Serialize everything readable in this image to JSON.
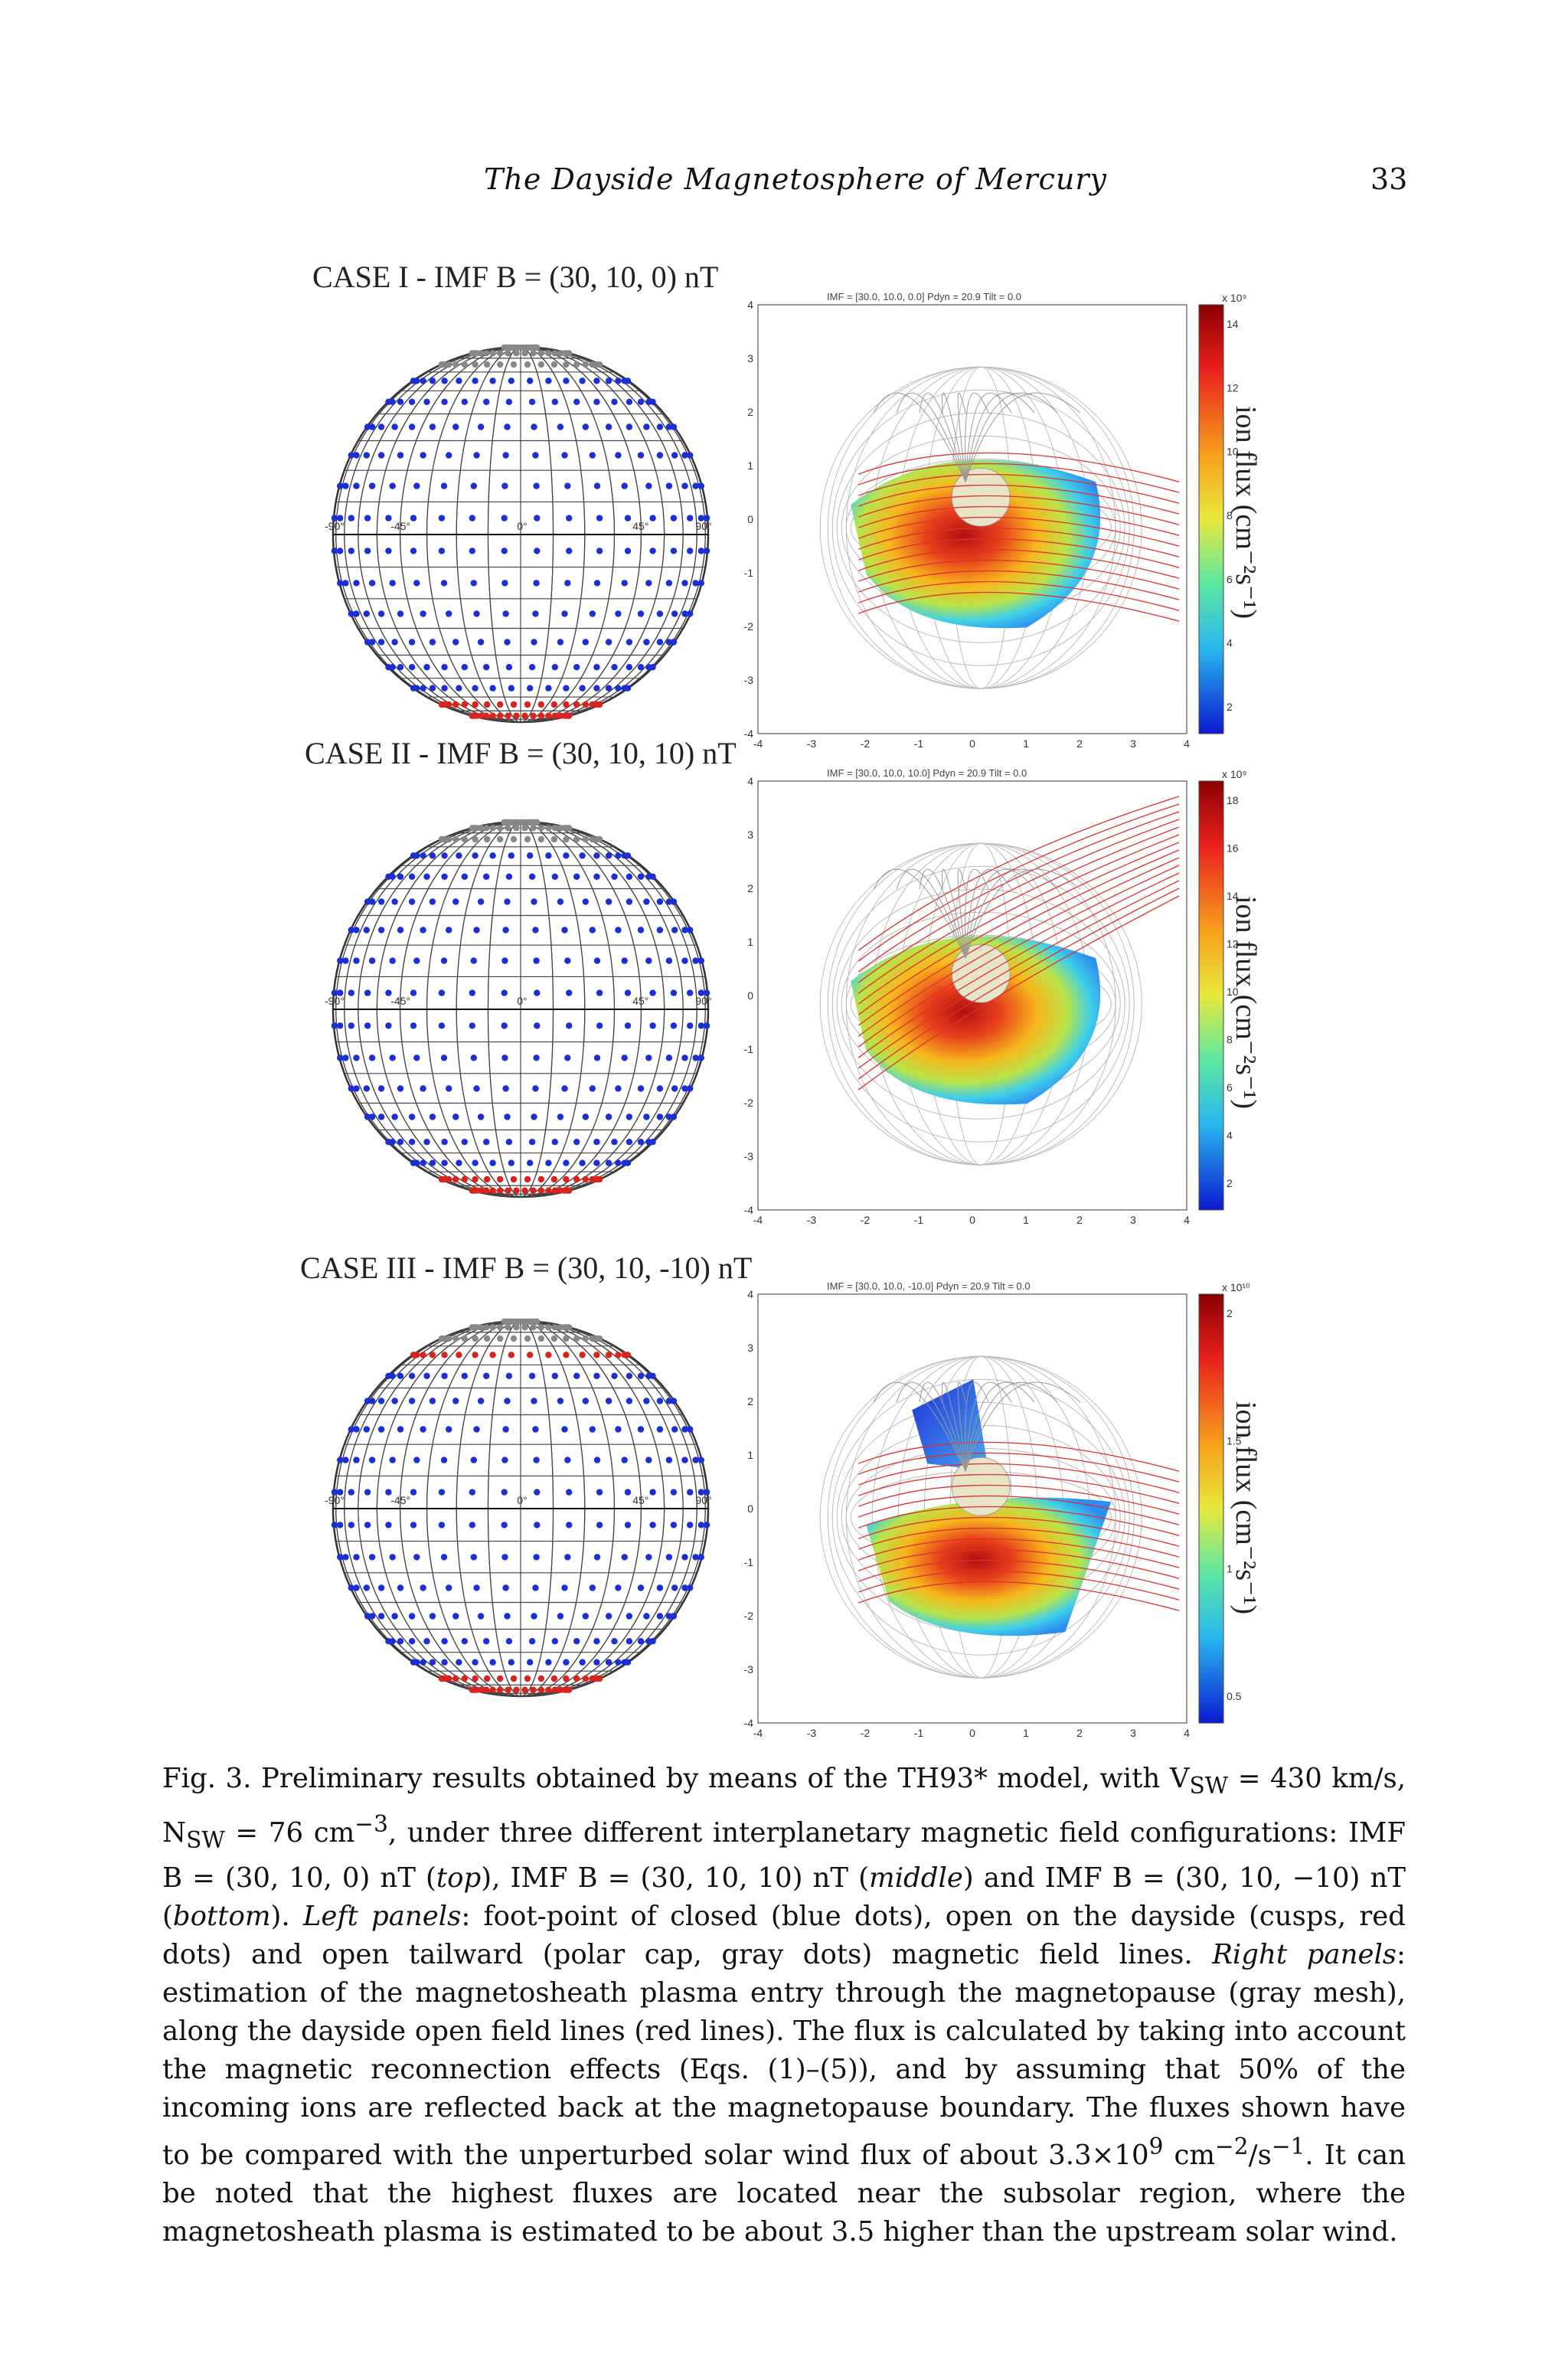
{
  "header": {
    "running_title": "The Dayside Magnetosphere of Mercury",
    "page_number": "33"
  },
  "colors": {
    "closed_dots": "#1a2fd6",
    "open_dayside_dots": "#d8231f",
    "polar_cap_dots": "#888888",
    "field_lines_open": "#e0302a",
    "mesh": "#bbbbbb"
  },
  "figure": {
    "panels": [
      {
        "case_label": "CASE I  -  IMF B = (30, 10, 0) nT",
        "plot_header": "IMF = [30.0, 10.0, 0.0]  Pdyn = 20.9  Tilt = 0.0",
        "colorbar_label": "ion flux (cm⁻²s⁻¹)",
        "colorbar_exponent": "x 10⁹",
        "colorbar_ticks": [
          "14",
          "12",
          "10",
          "8",
          "6",
          "4",
          "2"
        ],
        "lat_labels": [
          "-90°",
          "-45°",
          "0°",
          "45°",
          "90°"
        ],
        "x_ticks": [
          "-4",
          "-3",
          "-2",
          "-1",
          "0",
          "1",
          "2",
          "3",
          "4"
        ],
        "y_ticks": [
          "4",
          "3",
          "2",
          "1",
          "0",
          "-1",
          "-2",
          "-3",
          "-4"
        ]
      },
      {
        "case_label": "CASE II  -  IMF B = (30, 10, 10)  nT",
        "plot_header": "IMF = [30.0, 10.0, 10.0]  Pdyn = 20.9  Tilt = 0.0",
        "colorbar_label": "ion flux (cm⁻²s⁻¹)",
        "colorbar_exponent": "x 10⁹",
        "colorbar_ticks": [
          "18",
          "16",
          "14",
          "12",
          "10",
          "8",
          "6",
          "4",
          "2"
        ],
        "lat_labels": [
          "-90°",
          "-45°",
          "0°",
          "45°",
          "90°"
        ],
        "x_ticks": [
          "-4",
          "-3",
          "-2",
          "-1",
          "0",
          "1",
          "2",
          "3",
          "4"
        ],
        "y_ticks": [
          "4",
          "3",
          "2",
          "1",
          "0",
          "-1",
          "-2",
          "-3",
          "-4"
        ]
      },
      {
        "case_label": "CASE III  -  IMF B = (30, 10, -10) nT",
        "plot_header": "IMF = [30.0, 10.0, -10.0]  Pdyn = 20.9  Tilt = 0.0",
        "colorbar_label": "ion flux (cm⁻²s⁻¹)",
        "colorbar_exponent": "x 10¹⁰",
        "colorbar_ticks": [
          "2",
          "1.5",
          "1",
          "0.5"
        ],
        "lat_labels": [
          "-90°",
          "-45°",
          "0°",
          "45°",
          "90°"
        ],
        "x_ticks": [
          "-4",
          "-3",
          "-2",
          "-1",
          "0",
          "1",
          "2",
          "3",
          "4"
        ],
        "y_ticks": [
          "4",
          "3",
          "2",
          "1",
          "0",
          "-1",
          "-2",
          "-3",
          "-4"
        ]
      }
    ]
  },
  "caption": {
    "label": "Fig. 3.",
    "text_1": " Preliminary results obtained by means of the TH93* model, with V",
    "sub_sw1": "SW",
    "text_2": " = 430 km/s, N",
    "sub_sw2": "SW",
    "text_3": " = 76 cm",
    "sup_m3": "−3",
    "text_4": ", under three different interplanetary magnetic field configurations: IMF B = (30, 10, 0) nT (",
    "top": "top",
    "text_5": "), IMF B = (30, 10, 10) nT (",
    "middle": "middle",
    "text_6": ") and IMF B = (30, 10, −10) nT (",
    "bottom": "bottom",
    "text_7": "). ",
    "left_panels": "Left panels",
    "text_8": ": foot-point of closed (blue dots), open on the dayside (cusps, red dots) and open tailward (polar cap, gray dots) magnetic field lines. ",
    "right_panels": "Right panels",
    "text_9": ": estimation of the magnetosheath plasma entry through the magnetopause (gray mesh), along the dayside open field lines (red lines). The flux is calculated by taking into account the magnetic reconnection effects (Eqs. (1)–(5)), and by assuming that 50% of the incoming ions are reflected back at the magnetopause boundary. The fluxes shown have to be compared with the unperturbed solar wind flux of about 3.3×10",
    "sup_9": "9",
    "text_10": " cm",
    "sup_m2": "−2",
    "text_11": "/s",
    "sup_m1": "−1",
    "text_12": ". It can be noted that the highest fluxes are located near the subsolar region, where the magnetosheath plasma is estimated to be about 3.5 higher than the upstream solar wind."
  }
}
